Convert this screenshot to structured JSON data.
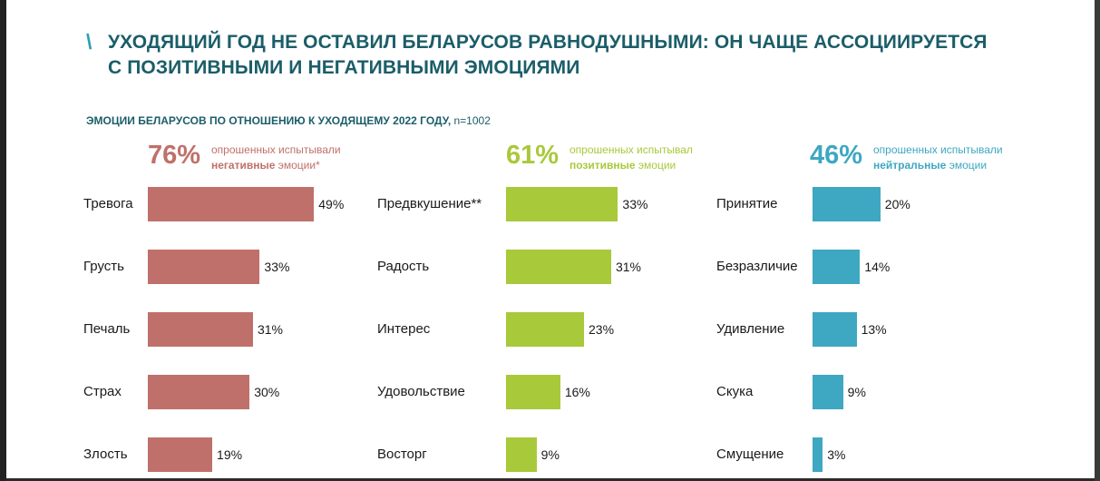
{
  "header": {
    "title_mark": "\\",
    "title_line1": "УХОДЯЩИЙ ГОД НЕ ОСТАВИЛ БЕЛАРУСОВ РАВНОДУШНЫМИ: ОН ЧАЩЕ АССОЦИИРУЕТСЯ",
    "title_line2": "С ПОЗИТИВНЫМИ И НЕГАТИВНЫМИ ЭМОЦИЯМИ",
    "subtitle": "ЭМОЦИИ БЕЛАРУСОВ ПО ОТНОШЕНИЮ К УХОДЯЩЕМУ 2022 ГОДУ,",
    "sample": "n=1002"
  },
  "colors": {
    "title": "#1b5d69",
    "negative": "#c0706a",
    "positive": "#a8c93a",
    "neutral": "#3ea7c2"
  },
  "chart_data": [
    {
      "type": "bar",
      "headline_value": "76%",
      "note_line1": "опрошенных испытывали",
      "note_bold": "негативные",
      "note_rest": "эмоции*",
      "categories": [
        "Тревога",
        "Грусть",
        "Печаль",
        "Страх",
        "Злость"
      ],
      "values": [
        49,
        33,
        31,
        30,
        19
      ],
      "value_labels": [
        "49%",
        "33%",
        "31%",
        "30%",
        "19%"
      ]
    },
    {
      "type": "bar",
      "headline_value": "61%",
      "note_line1": "опрошенных испытывал",
      "note_bold": "позитивные",
      "note_rest": "эмоции",
      "categories": [
        "Предвкушение**",
        "Радость",
        "Интерес",
        "Удовольствие",
        "Восторг"
      ],
      "values": [
        33,
        31,
        23,
        16,
        9
      ],
      "value_labels": [
        "33%",
        "31%",
        "23%",
        "16%",
        "9%"
      ]
    },
    {
      "type": "bar",
      "headline_value": "46%",
      "note_line1": "опрошенных испытывали",
      "note_bold": "нейтральные",
      "note_rest": "эмоции",
      "categories": [
        "Принятие",
        "Безразличие",
        "Удивление",
        "Скука",
        "Смущение"
      ],
      "values": [
        20,
        14,
        13,
        9,
        3
      ],
      "value_labels": [
        "20%",
        "14%",
        "13%",
        "9%",
        "3%"
      ]
    }
  ]
}
